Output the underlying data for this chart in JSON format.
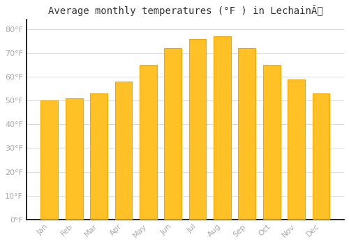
{
  "title": "Average monthly temperatures (°F ) in LechainÃ",
  "months": [
    "Jan",
    "Feb",
    "Mar",
    "Apr",
    "May",
    "Jun",
    "Jul",
    "Aug",
    "Sep",
    "Oct",
    "Nov",
    "Dec"
  ],
  "values": [
    50,
    51,
    53,
    58,
    65,
    72,
    76,
    77,
    72,
    65,
    59,
    53
  ],
  "bar_color_main": "#FFC125",
  "bar_color_edge": "#F5A800",
  "background_color": "#ffffff",
  "grid_color": "#dddddd",
  "yticks": [
    0,
    10,
    20,
    30,
    40,
    50,
    60,
    70,
    80
  ],
  "ylim": [
    0,
    84
  ],
  "title_fontsize": 10,
  "tick_fontsize": 8,
  "tick_label_color": "#aaaaaa",
  "spine_color": "#000000"
}
